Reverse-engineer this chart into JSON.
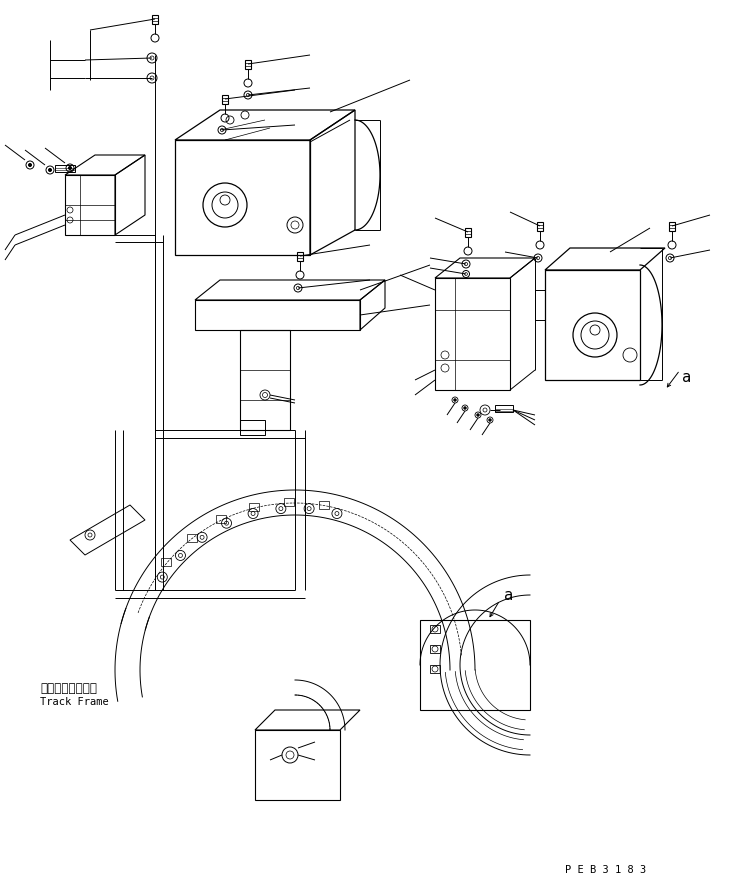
{
  "bg_color": "#ffffff",
  "line_color": "#000000",
  "lw": 0.7,
  "fig_width": 7.31,
  "fig_height": 8.85,
  "dpi": 100,
  "label_track_frame_jp": "トラックフレーム",
  "label_track_frame_en": "Track Frame",
  "label_a": "a",
  "label_peb": "P E B 3 1 8 3"
}
